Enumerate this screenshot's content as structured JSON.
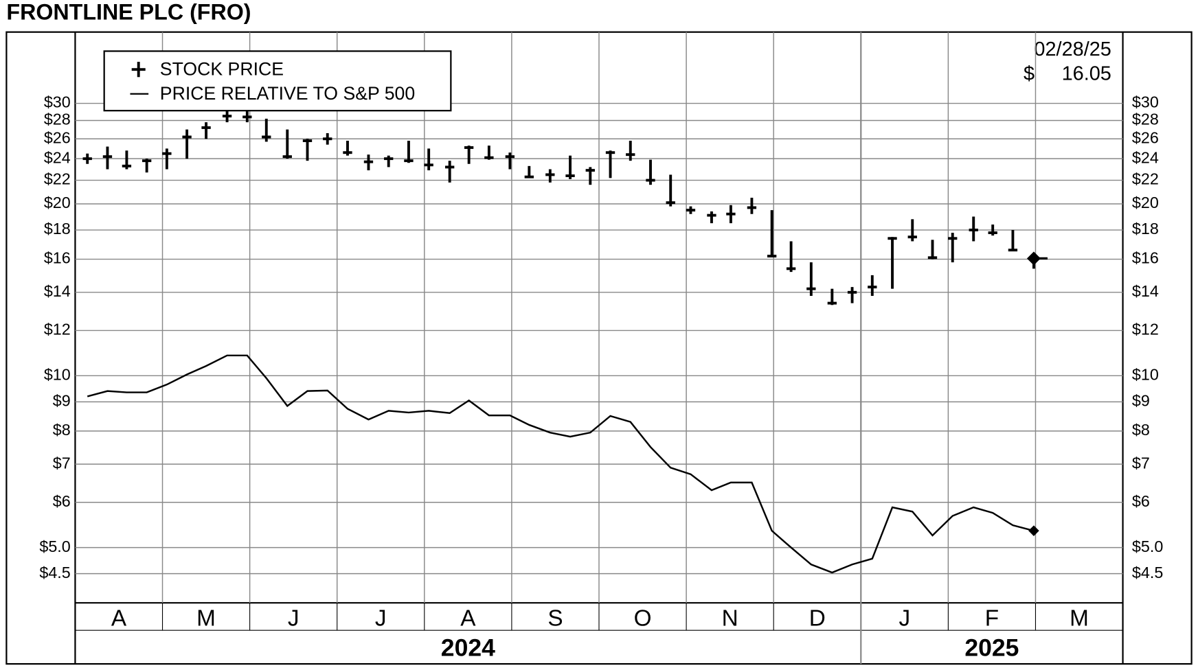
{
  "chart_data": {
    "type": "stock",
    "title": "FRONTLINE PLC (FRO)",
    "annotation_date": "02/28/25",
    "annotation_currency": "$",
    "annotation_price": "16.05",
    "log_scale": true,
    "grid": true,
    "legend": "upper left",
    "x": [
      0.14,
      0.37,
      0.59,
      0.82,
      1.05,
      1.28,
      1.5,
      1.74,
      1.97,
      2.19,
      2.43,
      2.66,
      2.89,
      3.12,
      3.36,
      3.59,
      3.82,
      4.05,
      4.29,
      4.51,
      4.74,
      4.98,
      5.2,
      5.44,
      5.67,
      5.9,
      6.13,
      6.36,
      6.59,
      6.82,
      7.05,
      7.29,
      7.51,
      7.75,
      7.98,
      8.2,
      8.43,
      8.67,
      8.9,
      9.13,
      9.36,
      9.59,
      9.82,
      10.05,
      10.29,
      10.51,
      10.74,
      10.98
    ],
    "xlim": [
      0,
      12
    ],
    "xticks": [
      {
        "value": 0.5,
        "label": "A"
      },
      {
        "value": 1.5,
        "label": "M"
      },
      {
        "value": 2.5,
        "label": "J"
      },
      {
        "value": 3.5,
        "label": "J"
      },
      {
        "value": 4.5,
        "label": "A"
      },
      {
        "value": 5.5,
        "label": "S"
      },
      {
        "value": 6.5,
        "label": "O"
      },
      {
        "value": 7.5,
        "label": "N"
      },
      {
        "value": 8.5,
        "label": "D"
      },
      {
        "value": 9.5,
        "label": "J"
      },
      {
        "value": 10.5,
        "label": "F"
      },
      {
        "value": 11.5,
        "label": "M"
      }
    ],
    "years": [
      {
        "label": "2024",
        "start": 0,
        "end": 9
      },
      {
        "label": "2025",
        "start": 9,
        "end": 12
      }
    ],
    "ylim": [
      4,
      40
    ],
    "yticks": [
      {
        "value": 30,
        "label": "$30"
      },
      {
        "value": 28,
        "label": "$28"
      },
      {
        "value": 26,
        "label": "$26"
      },
      {
        "value": 24,
        "label": "$24"
      },
      {
        "value": 22,
        "label": "$22"
      },
      {
        "value": 20,
        "label": "$20"
      },
      {
        "value": 18,
        "label": "$18"
      },
      {
        "value": 16,
        "label": "$16"
      },
      {
        "value": 14,
        "label": "$14"
      },
      {
        "value": 12,
        "label": "$12"
      },
      {
        "value": 10,
        "label": "$10"
      },
      {
        "value": 9,
        "label": "$9"
      },
      {
        "value": 8,
        "label": "$8"
      },
      {
        "value": 7,
        "label": "$7"
      },
      {
        "value": 6,
        "label": "$6"
      },
      {
        "value": 5,
        "label": "$5.0"
      },
      {
        "value": 4.5,
        "label": "$4.5"
      }
    ],
    "series": [
      {
        "name": "STOCK PRICE",
        "color": "#000000",
        "high": [
          24.5,
          25.2,
          24.8,
          24,
          25,
          27,
          27.8,
          29.5,
          29.5,
          28.2,
          27,
          26,
          26.6,
          25.8,
          24.4,
          24.3,
          25.8,
          25,
          23.8,
          25.3,
          25.3,
          24.6,
          23.3,
          23,
          24.3,
          23.2,
          24.8,
          25.8,
          23.9,
          22.5,
          19.8,
          19.4,
          19.9,
          20.5,
          19.5,
          17.2,
          15.8,
          14.2,
          14.3,
          15,
          17.5,
          18.8,
          17.3,
          17.8,
          19,
          18.4,
          18,
          16.4
        ],
        "low": [
          23.5,
          23,
          23,
          22.7,
          23,
          24,
          26,
          27.8,
          27.8,
          25.7,
          24,
          23.8,
          25.4,
          24.3,
          22.9,
          23.2,
          23.6,
          22.9,
          21.8,
          23.5,
          23.9,
          23,
          22.2,
          21.8,
          22.1,
          21.6,
          22.2,
          23.8,
          21.6,
          19.8,
          19.2,
          18.5,
          18.5,
          19.2,
          16.2,
          15.2,
          13.8,
          13.3,
          13.4,
          13.8,
          14.2,
          17.2,
          16,
          15.8,
          17.2,
          17.6,
          16.6,
          15.4
        ],
        "close": [
          24,
          24.2,
          23.3,
          23.8,
          24.5,
          26.2,
          27.2,
          28.5,
          28.4,
          26.2,
          24.2,
          25.8,
          26,
          24.6,
          23.7,
          24,
          23.8,
          23.4,
          23.2,
          25.1,
          24.1,
          24.2,
          22.3,
          22.5,
          22.4,
          22.9,
          24.6,
          24.4,
          22,
          20.1,
          19.5,
          19.1,
          19.2,
          19.7,
          16.2,
          15.4,
          14.2,
          13.4,
          14,
          14.3,
          17.4,
          17.5,
          16.1,
          17.4,
          18,
          17.8,
          16.6,
          16.05
        ]
      },
      {
        "name": "PRICE RELATIVE TO S&P 500",
        "color": "#000000",
        "values": [
          9.2,
          9.4,
          9.35,
          9.35,
          9.65,
          10.05,
          10.4,
          10.85,
          10.85,
          9.9,
          8.85,
          9.4,
          9.42,
          8.75,
          8.38,
          8.68,
          8.62,
          8.68,
          8.6,
          9.05,
          8.52,
          8.52,
          8.2,
          7.95,
          7.82,
          7.95,
          8.5,
          8.3,
          7.5,
          6.9,
          6.72,
          6.3,
          6.5,
          6.5,
          5.35,
          5.0,
          4.67,
          4.52,
          4.67,
          4.78,
          5.88,
          5.78,
          5.25,
          5.68,
          5.88,
          5.75,
          5.47,
          5.35
        ]
      }
    ]
  }
}
